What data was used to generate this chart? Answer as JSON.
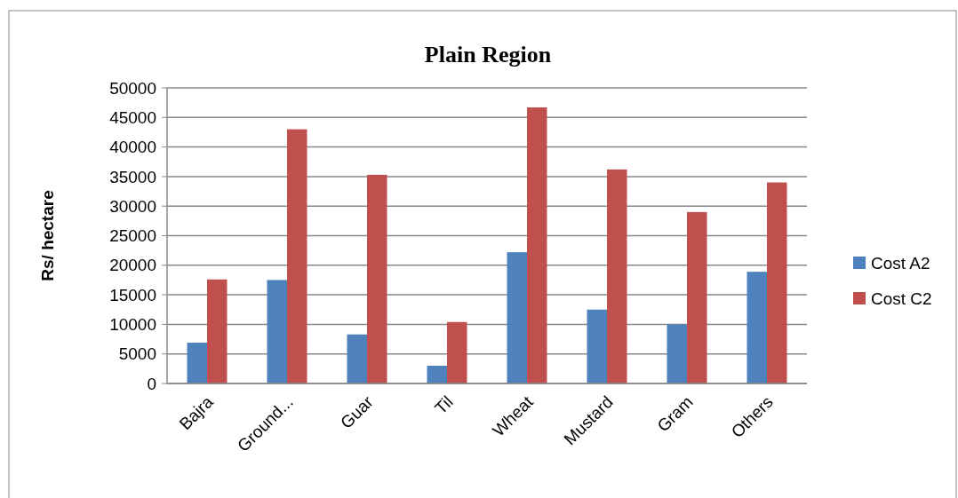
{
  "chart_data": {
    "type": "bar",
    "title": "Plain Region",
    "ylabel": "Rs/ hectare",
    "categories": [
      "Bajra",
      "Ground...",
      "Guar",
      "Til",
      "Wheat",
      "Mustard",
      "Gram",
      "Others"
    ],
    "series": [
      {
        "name": "Cost A2",
        "color": "#4f81bd",
        "values": [
          6900,
          17500,
          8300,
          3000,
          22200,
          12500,
          10000,
          18900
        ]
      },
      {
        "name": "Cost C2",
        "color": "#c0504d",
        "values": [
          17600,
          43000,
          35300,
          10400,
          46700,
          36200,
          29000,
          34000
        ]
      }
    ],
    "ylim": [
      0,
      50000
    ],
    "yticks": [
      0,
      5000,
      10000,
      15000,
      20000,
      25000,
      30000,
      35000,
      40000,
      45000,
      50000
    ],
    "grid": "y",
    "legend": "right"
  }
}
